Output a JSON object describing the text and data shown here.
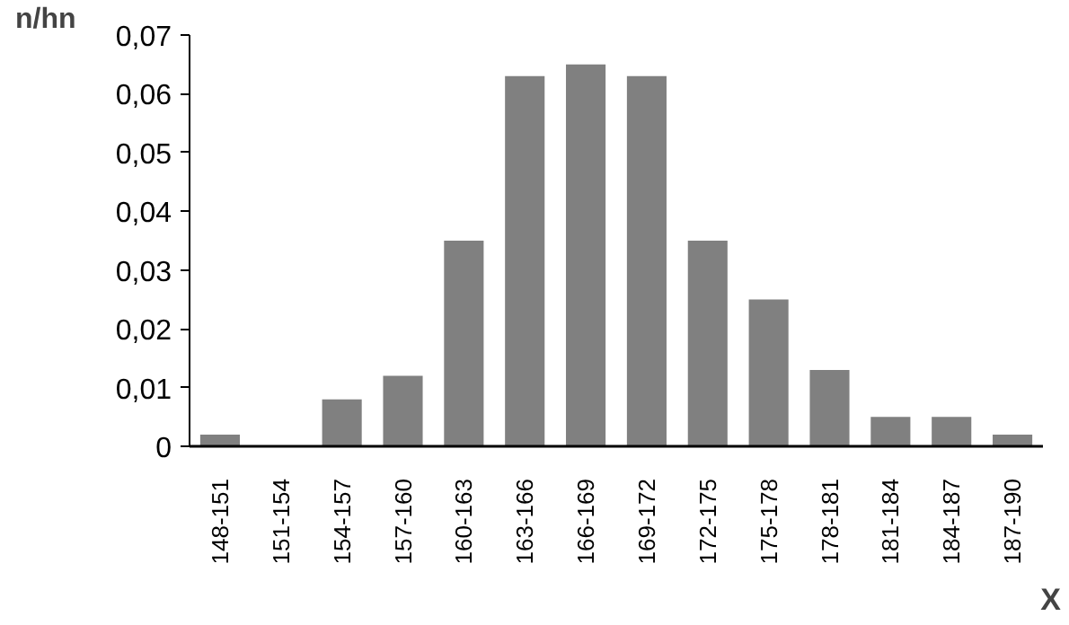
{
  "chart_data": {
    "type": "bar",
    "xlabel": "X",
    "ylabel": "n/hn",
    "categories": [
      "148-151",
      "151-154",
      "154-157",
      "157-160",
      "160-163",
      "163-166",
      "166-169",
      "169-172",
      "172-175",
      "175-178",
      "178-181",
      "181-184",
      "184-187",
      "187-190"
    ],
    "values": [
      0.002,
      0,
      0.008,
      0.012,
      0.035,
      0.063,
      0.065,
      0.063,
      0.035,
      0.025,
      0.013,
      0.005,
      0.005,
      0.002
    ],
    "color": "#808080",
    "ylim": [
      0,
      0.07
    ],
    "yticks": [
      {
        "value": 0,
        "label": "0"
      },
      {
        "value": 0.01,
        "label": "0,01"
      },
      {
        "value": 0.02,
        "label": "0,02"
      },
      {
        "value": 0.03,
        "label": "0,03"
      },
      {
        "value": 0.04,
        "label": "0,04"
      },
      {
        "value": 0.05,
        "label": "0,05"
      },
      {
        "value": 0.06,
        "label": "0,06"
      },
      {
        "value": 0.07,
        "label": "0,07"
      }
    ],
    "grid": false
  }
}
